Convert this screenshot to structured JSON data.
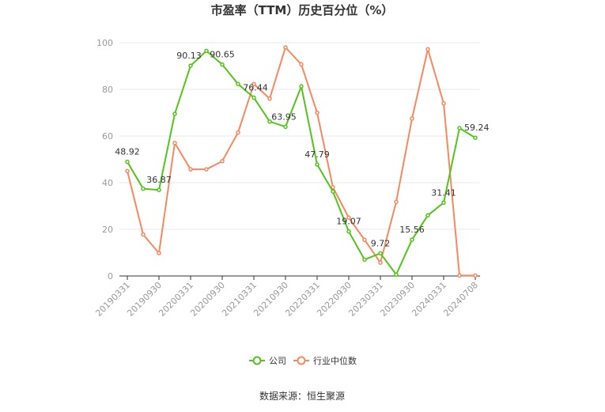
{
  "chart_data": {
    "type": "line",
    "title": "市盈率（TTM）历史百分位（%）",
    "xlabel": "",
    "ylabel": "",
    "ylim": [
      0,
      100
    ],
    "yticks": [
      0,
      20,
      40,
      60,
      80,
      100
    ],
    "grid": true,
    "legend_position": "bottom-center",
    "x": [
      "20190331",
      "20190630",
      "20190930",
      "20191231",
      "20200331",
      "20200630",
      "20200930",
      "20201231",
      "20210331",
      "20210630",
      "20210930",
      "20211231",
      "20220331",
      "20220630",
      "20220930",
      "20221231",
      "20230331",
      "20230630",
      "20230930",
      "20231231",
      "20240331",
      "20240630",
      "20240708"
    ],
    "x_tick_labels": [
      "20190331",
      "20190930",
      "20200331",
      "20200930",
      "20210331",
      "20210930",
      "20220331",
      "20220930",
      "20230331",
      "20230930",
      "20240331",
      "20240708"
    ],
    "series": [
      {
        "name": "公司",
        "color": "#52c41a",
        "values": [
          48.92,
          37.4,
          36.87,
          69.5,
          90.13,
          96.5,
          90.65,
          82.3,
          76.44,
          66.2,
          63.95,
          81.3,
          47.79,
          36.2,
          19.07,
          7.0,
          9.72,
          0.6,
          15.56,
          26.0,
          31.41,
          63.4,
          59.24
        ],
        "labels": {
          "0": "48.92",
          "2": "36.87",
          "4": "90.13",
          "6": "90.65",
          "8": "76.44",
          "10": "63.95",
          "12": "47.79",
          "14": "19.07",
          "16": "9.72",
          "18": "15.56",
          "20": "31.41",
          "22": "59.24"
        }
      },
      {
        "name": "行业中位数",
        "color": "#f4895f",
        "values": [
          45.0,
          17.8,
          9.8,
          57.0,
          45.7,
          45.7,
          49.2,
          61.5,
          82.3,
          76.0,
          98.0,
          90.7,
          70.0,
          38.0,
          25.0,
          15.5,
          5.7,
          31.8,
          67.5,
          97.2,
          74.0,
          0.2,
          0.2
        ]
      }
    ]
  },
  "source": {
    "text": "数据来源：恒生聚源"
  }
}
